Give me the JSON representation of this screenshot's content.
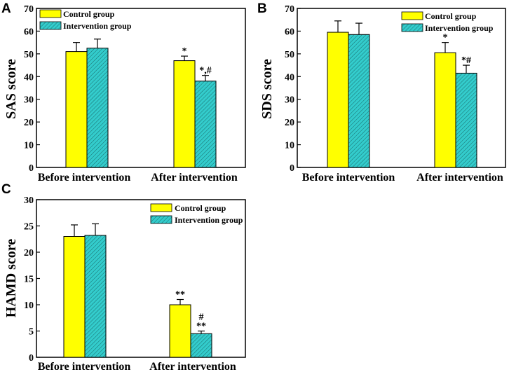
{
  "colors": {
    "control": "#ffff00",
    "intervention": "#33cccc",
    "hatch_line": "#1a6b6b",
    "axis": "#000000"
  },
  "chart_data": [
    {
      "type": "bar",
      "panel": "A",
      "ylabel": "SAS score",
      "xlabel": "",
      "categories": [
        "Before intervention",
        "After intervention"
      ],
      "ylim": [
        0,
        70
      ],
      "yticks": [
        0,
        10,
        20,
        30,
        40,
        50,
        60,
        70
      ],
      "legend": "top-right",
      "series": [
        {
          "name": "Control group",
          "values": [
            51,
            47
          ],
          "errors": [
            4,
            2
          ],
          "annotations": [
            "",
            "*"
          ]
        },
        {
          "name": "Intervention group",
          "values": [
            52.5,
            38
          ],
          "errors": [
            4,
            2.5
          ],
          "annotations": [
            "",
            "*,#"
          ]
        }
      ]
    },
    {
      "type": "bar",
      "panel": "B",
      "ylabel": "SDS score",
      "xlabel": "",
      "categories": [
        "Before intervention",
        "After  intervention"
      ],
      "ylim": [
        0,
        70
      ],
      "yticks": [
        0,
        10,
        20,
        30,
        40,
        50,
        60,
        70
      ],
      "legend": "top-right",
      "series": [
        {
          "name": "Control group",
          "values": [
            59.5,
            50.5
          ],
          "errors": [
            5,
            4.5
          ],
          "annotations": [
            "",
            "*"
          ]
        },
        {
          "name": "Intervention group",
          "values": [
            58.5,
            41.5
          ],
          "errors": [
            5,
            3.5
          ],
          "annotations": [
            "",
            "*#"
          ]
        }
      ]
    },
    {
      "type": "bar",
      "panel": "C",
      "ylabel": "HAMD score",
      "xlabel": "",
      "categories": [
        "Before intervention",
        "After intervention"
      ],
      "ylim": [
        0,
        30
      ],
      "yticks": [
        0,
        5,
        10,
        15,
        20,
        25,
        30
      ],
      "legend": "top-right",
      "series": [
        {
          "name": "Control group",
          "values": [
            23,
            10
          ],
          "errors": [
            2.2,
            1
          ],
          "annotations": [
            "",
            "**"
          ]
        },
        {
          "name": "Intervention group",
          "values": [
            23.2,
            4.5
          ],
          "errors": [
            2.2,
            0.5
          ],
          "annotations": [
            "",
            "#\n**"
          ]
        }
      ]
    }
  ]
}
